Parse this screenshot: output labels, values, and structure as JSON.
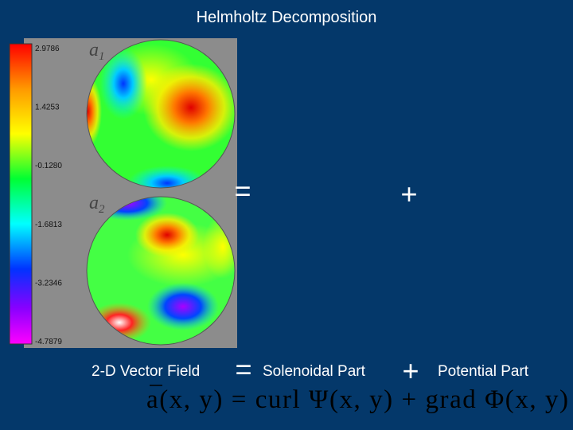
{
  "header": {
    "title": "Helmholtz Decomposition"
  },
  "colorbar": {
    "ticks": [
      "2.9786",
      "1.4253",
      "-0.1280",
      "-1.6813",
      "-3.2346",
      "-4.7879"
    ]
  },
  "panels": [
    {
      "symbol": "a",
      "subscript": "1"
    },
    {
      "symbol": "a",
      "subscript": "2"
    }
  ],
  "middle_row": {
    "equals": "=",
    "plus": "+"
  },
  "caption_row": {
    "field": "2-D Vector Field",
    "equals": "=",
    "solenoidal": "Solenoidal Part",
    "plus": "+",
    "potential": "Potential Part"
  },
  "formula": "a(x, y) = curl Ψ(x, y) + grad Φ(x, y)"
}
